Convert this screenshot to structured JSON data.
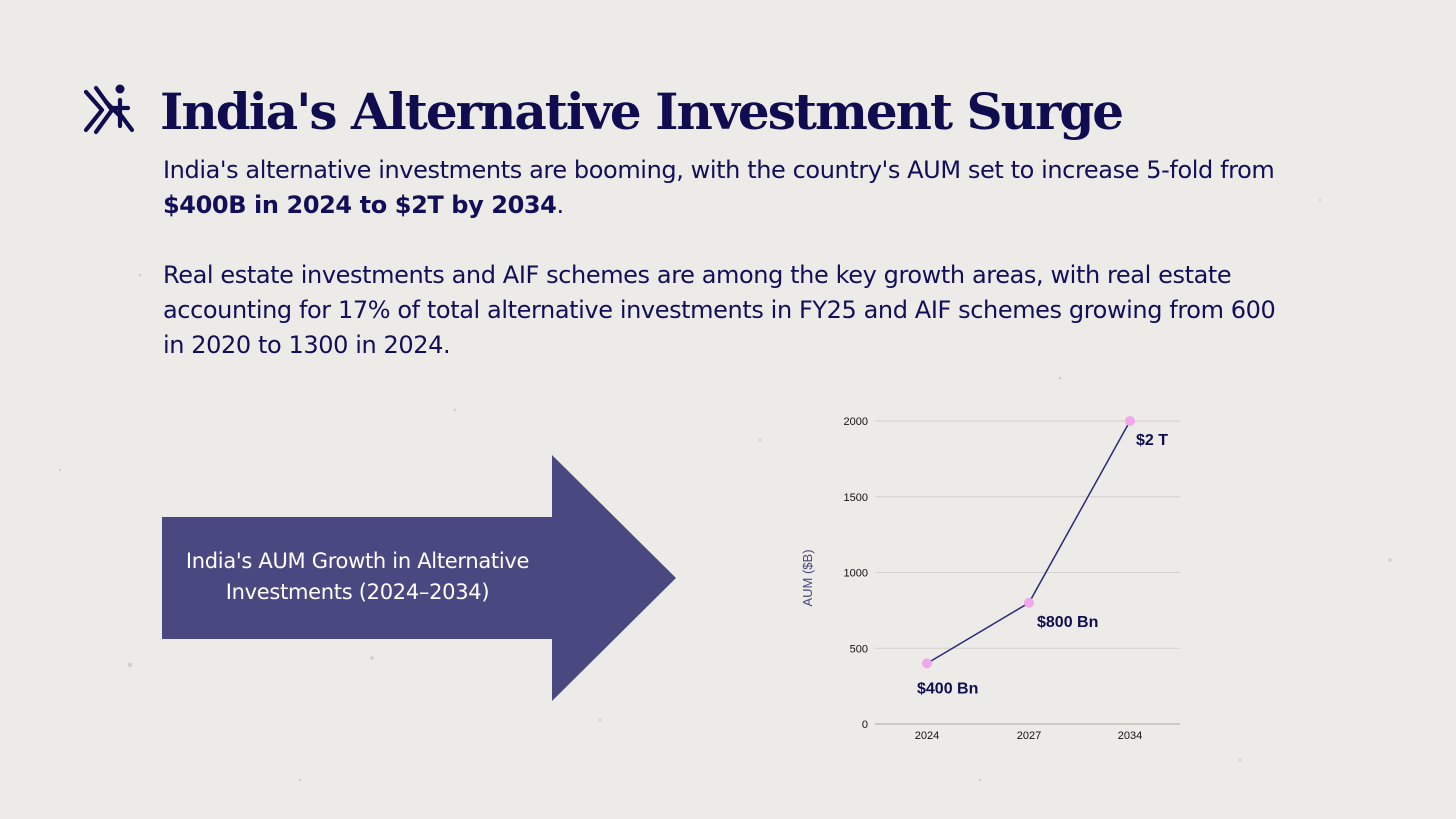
{
  "title": "India's Alternative Investment Surge",
  "paragraph1": {
    "text_before": "India's alternative investments are booming, with the country's AUM set to increase 5-fold from ",
    "bold": "$400B in 2024 to $2T by 2034",
    "text_after": "."
  },
  "paragraph2": "Real estate investments and AIF schemes are among the key growth areas, with real estate accounting for 17% of total alternative investments in FY25 and AIF schemes growing from 600 in 2020 to 1300 in 2024.",
  "arrow_label": "India's AUM Growth in Alternative Investments (2024–2034)",
  "colors": {
    "navy": "#0f0d4f",
    "arrow_fill": "#4a4880",
    "line": "#2b2a7a",
    "marker": "#f2a6ec",
    "grid": "#d3d2ce",
    "background": "#ecebe7"
  },
  "icons": {
    "logo": "brand-logo-icon"
  },
  "chart_data": {
    "type": "line",
    "categories": [
      "2024",
      "2027",
      "2034"
    ],
    "series": [
      {
        "values": [
          400,
          800,
          2000
        ],
        "labels": [
          "$400 Bn",
          "$800 Bn",
          "$2 T"
        ]
      }
    ],
    "ylabel": "AUM ($B)",
    "xlabel": "",
    "ylim": [
      0,
      2000
    ],
    "yticks": [
      0,
      500,
      1000,
      1500,
      2000
    ],
    "grid": true
  }
}
